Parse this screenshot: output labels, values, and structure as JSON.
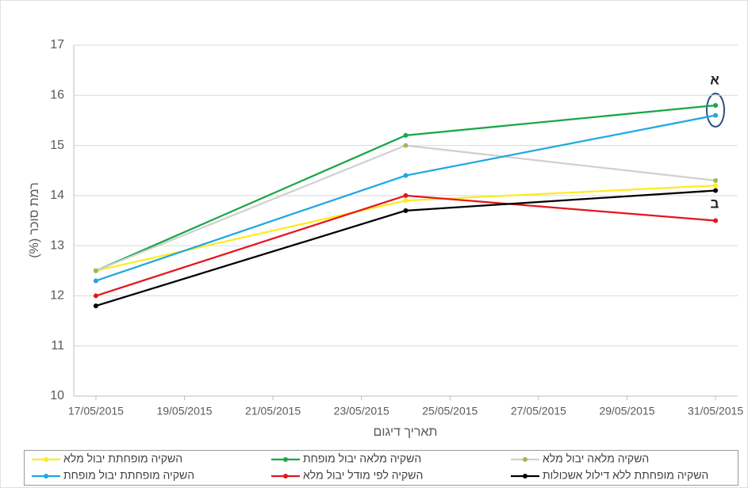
{
  "chart_data": {
    "type": "line",
    "y_label": "רמת סוכר (%)",
    "x_label": "תאריך דיגום",
    "annotations": [
      "א",
      "ב"
    ],
    "x": [
      "17/05/2015",
      "24/05/2015",
      "31/05/2015"
    ],
    "xticks": [
      "17/05/2015",
      "19/05/2015",
      "21/05/2015",
      "23/05/2015",
      "25/05/2015",
      "27/05/2015",
      "29/05/2015",
      "31/05/2015"
    ],
    "ylim": [
      10,
      17
    ],
    "yticks": [
      10,
      11,
      12,
      13,
      14,
      15,
      16,
      17
    ],
    "grid": true,
    "legend": "bottom",
    "series": [
      {
        "name": "השקיה מופחתת יבול מלא",
        "color": "#ffeb1e",
        "values": [
          12.5,
          13.9,
          14.2
        ]
      },
      {
        "name": "השקיה מלאה יבול מופחת",
        "color": "#1aa64a",
        "values": [
          12.5,
          15.2,
          15.8
        ]
      },
      {
        "name": "השקיה מלאה יבול מלא",
        "color": "#d0d0d0",
        "marker_color": "#9bbb59",
        "values": [
          12.5,
          15.0,
          14.3
        ]
      },
      {
        "name": "השקיה מופחתת יבול מופחת",
        "color": "#1ea8e0",
        "values": [
          12.3,
          14.4,
          15.6
        ]
      },
      {
        "name": "השקיה לפי מודל יבול מלא",
        "color": "#e3161b",
        "values": [
          12.0,
          14.0,
          13.5
        ]
      },
      {
        "name": "השקיה מופחתת ללא דילול אשכולות",
        "color": "#000000",
        "values": [
          11.8,
          13.7,
          14.1
        ]
      }
    ]
  }
}
